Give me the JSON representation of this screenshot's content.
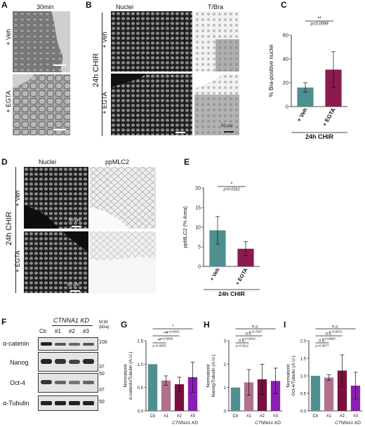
{
  "panels": {
    "A": "A",
    "B": "B",
    "C": "C",
    "D": "D",
    "E": "E",
    "F": "F",
    "G": "G",
    "H": "H",
    "I": "I"
  },
  "panelA": {
    "time": "30min",
    "row_labels": [
      "+ Veh",
      "+ EGTA"
    ]
  },
  "panelB": {
    "col_labels": [
      "Nuclei",
      "T/Bra"
    ],
    "condition": "24h CHIR",
    "row_labels": [
      "+ Veh",
      "+ EGTA"
    ],
    "scale": "50 µm"
  },
  "panelD": {
    "col_labels": [
      "Nuclei",
      "ppMLC2"
    ],
    "condition": "24h CHIR",
    "row_labels": [
      "+ Veh",
      "+ EGTA"
    ],
    "scale": "50 µm"
  },
  "panelF": {
    "header": "CTNNA1 KD",
    "lanes": [
      "Ctr",
      "#1",
      "#2",
      "#3"
    ],
    "mw_header": "M.W. (kDa)",
    "rows": [
      {
        "label": "α-catenin",
        "mw": [
          "100"
        ]
      },
      {
        "label": "Nanog",
        "mw": [
          "37"
        ]
      },
      {
        "label": "Oct-4",
        "mw": [
          "50",
          "37"
        ]
      },
      {
        "label": "α-Tubulin",
        "mw": [
          "50"
        ]
      }
    ]
  },
  "colors": {
    "teal": "#4f8f8f",
    "wine": "#8b1a4f",
    "ctr_teal": "#4f8f8f",
    "kd1": "#b07090",
    "kd2": "#7a1040",
    "kd3": "#8a1fb0"
  },
  "chart_data": [
    {
      "id": "C",
      "type": "bar",
      "categories": [
        "+ Veh",
        "+ EGTA"
      ],
      "values": [
        16,
        31
      ],
      "errors": [
        4,
        15
      ],
      "ylabel": "% Bra-positive nuclei",
      "xlabel": "24h CHIR",
      "ylim": [
        0,
        60
      ],
      "yticks": [
        "0",
        "20",
        "40",
        "60"
      ],
      "annotation": {
        "stars": "**",
        "p": "p=0.0099"
      }
    },
    {
      "id": "E",
      "type": "bar",
      "categories": [
        "+ Veh",
        "+ EGTA"
      ],
      "values": [
        9.2,
        4.5
      ],
      "errors": [
        3.5,
        1.8
      ],
      "ylabel": "ppMLC2 (% Area)",
      "xlabel": "24h CHIR",
      "ylim": [
        0,
        20
      ],
      "yticks": [
        "0",
        "5",
        "10",
        "15",
        "20"
      ],
      "annotation": {
        "stars": "*",
        "p": "p=0.0262"
      }
    },
    {
      "id": "G",
      "type": "bar",
      "categories": [
        "Ctr",
        "#1",
        "#2",
        "#3"
      ],
      "values": [
        1.0,
        0.65,
        0.57,
        0.72
      ],
      "errors": [
        0.0,
        0.1,
        0.15,
        0.32
      ],
      "ylabel": "Normalized α-catenin/Tubulin (A.U.)",
      "xlabel": "CTNNA1 KD",
      "ylim": [
        0,
        1.5
      ],
      "yticks": [
        "0.0",
        "0.5",
        "1.0",
        "1.5"
      ],
      "annotations": [
        {
          "stars": "*",
          "p": "p=0.0493"
        },
        {
          "stars": "***",
          "p": "p=0.0008"
        },
        {
          "stars": "**",
          "p": "p=0.0056"
        }
      ]
    },
    {
      "id": "H",
      "type": "bar",
      "categories": [
        "Ctr",
        "#1",
        "#2",
        "#3"
      ],
      "values": [
        1.0,
        1.22,
        1.35,
        1.28
      ],
      "errors": [
        0.0,
        0.55,
        0.65,
        0.55
      ],
      "ylabel": "Normalized Nanog/Tubulin (A.U.)",
      "xlabel": "CTNNA1 KD",
      "ylim": [
        0,
        3
      ],
      "yticks": [
        "0",
        "1",
        "2",
        "3"
      ],
      "annotations": [
        {
          "stars": "n.s.",
          "p": "p=0.7957"
        },
        {
          "stars": "n.s.",
          "p": "p=0.6642"
        },
        {
          "stars": "n.s.",
          "p": "p=0.9111"
        }
      ]
    },
    {
      "id": "I",
      "type": "bar",
      "categories": [
        "Ctr",
        "#1",
        "#2",
        "#3"
      ],
      "values": [
        1.0,
        0.95,
        1.15,
        0.72
      ],
      "errors": [
        0.0,
        0.08,
        0.45,
        0.38
      ],
      "ylabel": "Normalized Oct-4/Tubulin (A.U.)",
      "xlabel": "CTNNA1 KD",
      "ylim": [
        0,
        2.0
      ],
      "yticks": [
        "0.0",
        "0.5",
        "1.0",
        "1.5",
        "2.0"
      ],
      "annotations": [
        {
          "stars": "n.s.",
          "p": "p=0.6672"
        },
        {
          "stars": "n.s.",
          "p": "p=0.8882"
        },
        {
          "stars": "n.s.",
          "p": "p=0.9977"
        }
      ]
    }
  ]
}
